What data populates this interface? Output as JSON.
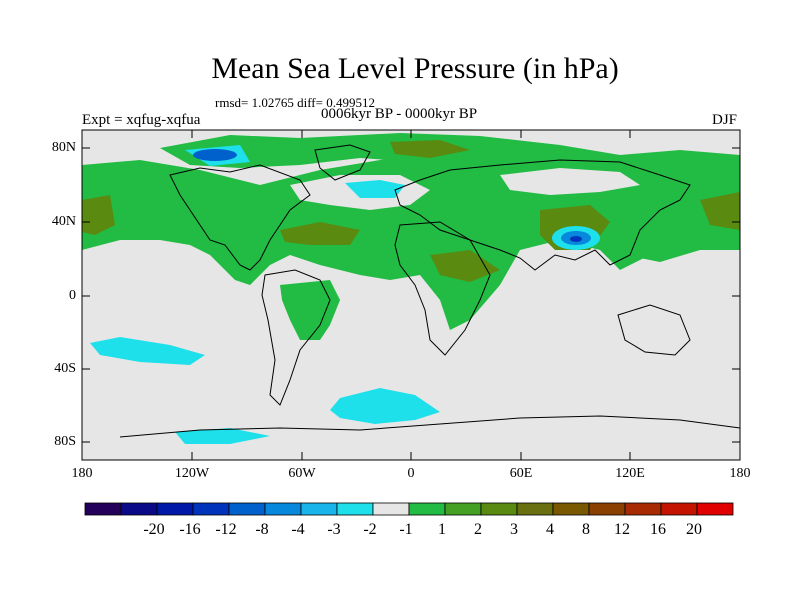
{
  "title": "Mean Sea Level Pressure (in hPa)",
  "stats_line": "rmsd= 1.02765 diff= 0.499512",
  "experiment_label": "Expt = xqfug-xqfua",
  "period_label": "0006kyr BP - 0000kyr BP",
  "season_label": "DJF",
  "lat_ticks": [
    "80N",
    "40N",
    "0",
    "40S",
    "80S"
  ],
  "lon_ticks": [
    "180",
    "120W",
    "60W",
    "0",
    "60E",
    "120E",
    "180"
  ],
  "colorbar": {
    "colors": [
      "#24005a",
      "#0a0a88",
      "#0018a8",
      "#0033bb",
      "#0060cc",
      "#0888dd",
      "#18b4ea",
      "#1ee0ea",
      "#e6e6e6",
      "#22bb44",
      "#44a022",
      "#5a8a10",
      "#6a7010",
      "#7a5800",
      "#8a4000",
      "#a82a00",
      "#c41400",
      "#e00000"
    ],
    "labels": [
      "-20",
      "-16",
      "-12",
      "-8",
      "-4",
      "-3",
      "-2",
      "-1",
      "1",
      "2",
      "3",
      "4",
      "8",
      "12",
      "16",
      "20"
    ]
  },
  "legend_classes": {
    "grey": "#e6e6e6",
    "light_green": "#22bb44",
    "dark_green": "#5a8a10",
    "cyan": "#1ee0ea",
    "blue": "#0888dd"
  }
}
